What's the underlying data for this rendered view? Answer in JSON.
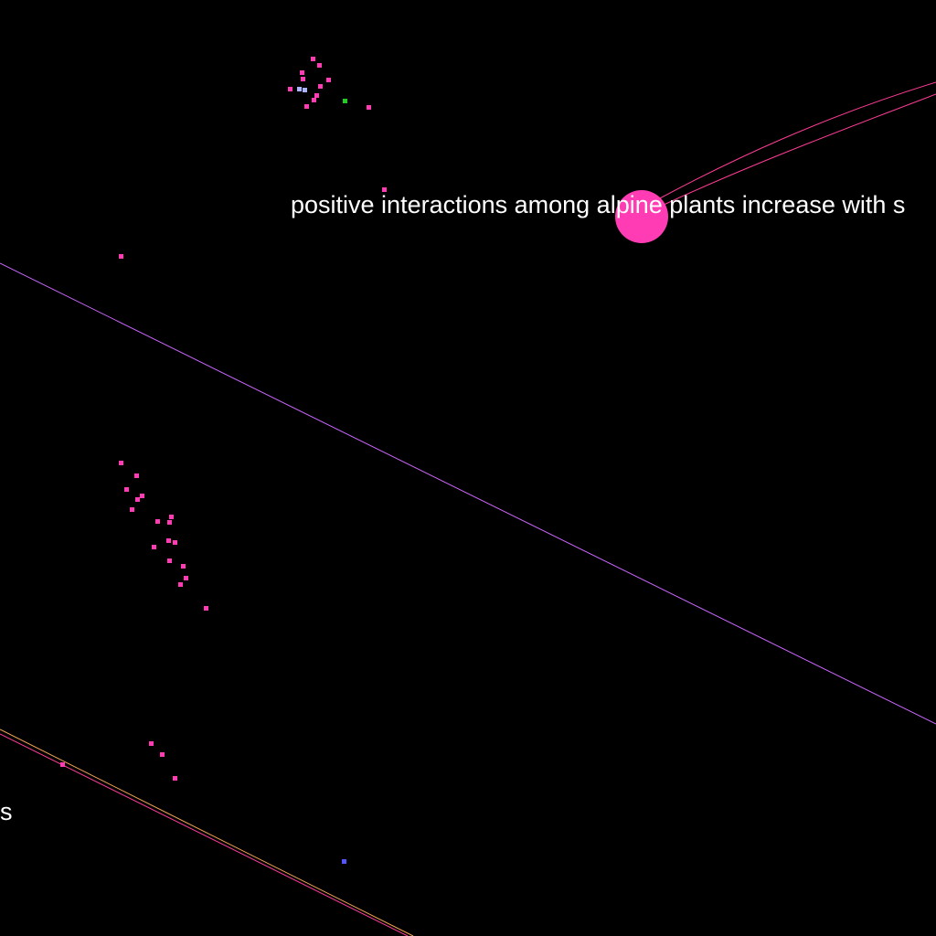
{
  "canvas": {
    "background": "#000000"
  },
  "palette": {
    "node_pink": "#ff3cb4",
    "node_lavender": "#aab4ff",
    "node_green": "#22cc22",
    "node_blue": "#5555ff",
    "edge_pink": "#ff3c96",
    "edge_violet": "#cc66ff",
    "edge_orange": "#ffaa55",
    "label_color": "#ffffff"
  },
  "labels": {
    "main_label": "positive interactions among alpine plants increase with s",
    "edge_label_fragment": "s"
  }
}
